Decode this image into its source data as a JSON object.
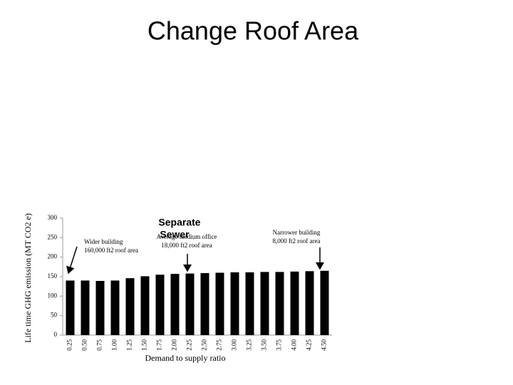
{
  "chart_data": {
    "type": "bar",
    "title": "Change Roof Area",
    "subtitle": [
      "Separate",
      "Sewer"
    ],
    "x_label": "Demand to supply ratio",
    "y_label": "Life time GHG emission (MT CO2 e)",
    "categories": [
      "0.25",
      "0.50",
      "0.75",
      "1.00",
      "1.25",
      "1.50",
      "1.75",
      "2.00",
      "2.25",
      "2.50",
      "2.75",
      "3.00",
      "3.25",
      "3.50",
      "3.75",
      "4.00",
      "4.25",
      "4.50"
    ],
    "values": [
      140,
      140,
      139,
      140,
      146,
      151,
      155,
      157,
      158,
      159,
      160,
      161,
      161,
      162,
      162,
      163,
      164,
      165
    ],
    "color": "#000000",
    "ylim": [
      0,
      300
    ],
    "yticks": [
      0,
      50,
      100,
      150,
      200,
      250,
      300
    ],
    "annotations": [
      [
        "Wider building",
        "160,000 ft2 roof area"
      ],
      [
        "Average medium office",
        "18,000 ft2 roof area"
      ],
      [
        "Narrower building",
        "8,000 ft2 roof area"
      ]
    ]
  }
}
